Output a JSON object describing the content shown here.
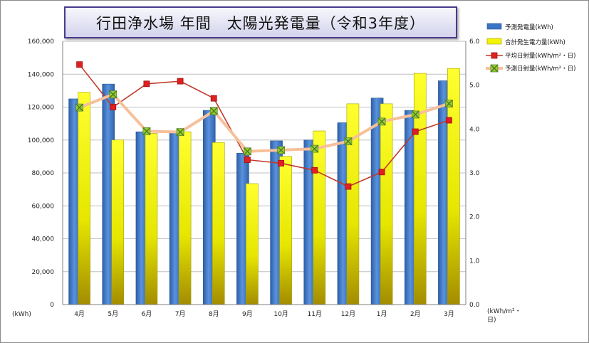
{
  "chart_data": {
    "type": "bar",
    "title": "行田浄水場 年間　太陽光発電量（令和3年度）",
    "categories": [
      "4月",
      "5月",
      "6月",
      "7月",
      "8月",
      "9月",
      "10月",
      "11月",
      "12月",
      "1月",
      "2月",
      "3月"
    ],
    "series": [
      {
        "name": "予測発電量(kWh)",
        "type": "bar",
        "axis": "left",
        "color": "#3a74c4",
        "values": [
          125000,
          134000,
          105000,
          105000,
          118000,
          92000,
          99500,
          100000,
          110500,
          125500,
          118000,
          136000
        ]
      },
      {
        "name": "合計発生電力量(kWh)",
        "type": "bar",
        "axis": "left",
        "color": "#f4f400",
        "values": [
          129000,
          100000,
          104000,
          105000,
          98500,
          73500,
          90000,
          105500,
          122000,
          122000,
          140500,
          143500
        ]
      },
      {
        "name": "平均日射量(kWh/m²・日)",
        "type": "line",
        "axis": "right",
        "color": "#c0392b",
        "marker": "#e02020",
        "values": [
          5.47,
          4.5,
          5.03,
          5.09,
          4.7,
          3.3,
          3.22,
          3.06,
          2.69,
          3.02,
          3.94,
          4.2
        ]
      },
      {
        "name": "予測日射量(kWh/m²・日)",
        "type": "line",
        "axis": "right",
        "color": "#f6c09a",
        "marker": "#9acd32",
        "values": [
          4.49,
          4.79,
          3.95,
          3.93,
          4.41,
          3.49,
          3.52,
          3.55,
          3.72,
          4.17,
          4.33,
          4.58
        ]
      }
    ],
    "yleft": {
      "ticks": [
        "0",
        "20,000",
        "40,000",
        "60,000",
        "80,000",
        "100,000",
        "120,000",
        "140,000",
        "160,000"
      ],
      "min": 0,
      "max": 160000,
      "unit": "(kWh)"
    },
    "yright": {
      "ticks": [
        "0.0",
        "1.0",
        "2.0",
        "3.0",
        "4.0",
        "5.0",
        "6.0"
      ],
      "min": 0,
      "max": 6,
      "unit_line1": "(kWh/m²・",
      "unit_line2": "日)"
    },
    "legend_position": "right"
  }
}
